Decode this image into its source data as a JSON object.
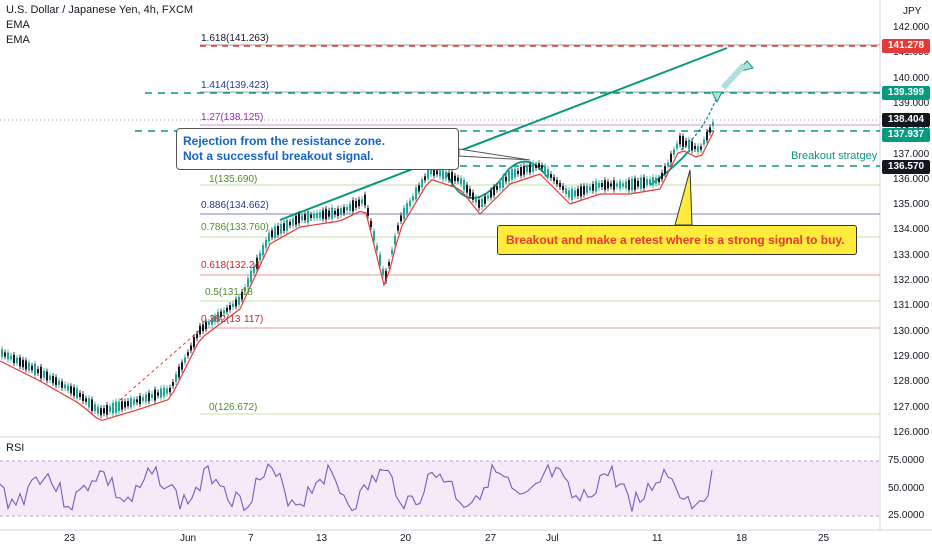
{
  "header": {
    "title": "U.S. Dollar / Japanese Yen, 4h, FXCM",
    "indicator1": "EMA",
    "indicator2": "EMA"
  },
  "currency_label": "JPY",
  "price_axis": [
    "142.000",
    "141.000",
    "140.000",
    "139.000",
    "138.000",
    "137.000",
    "136.000",
    "135.000",
    "134.000",
    "133.000",
    "132.000",
    "131.000",
    "130.000",
    "129.000",
    "128.000",
    "127.000",
    "126.000"
  ],
  "price_tags": {
    "tag1": "141.278",
    "tag2": "139.399",
    "tag3": "138.404",
    "tag4": "137.937",
    "tag5": "136.570"
  },
  "fib_levels": {
    "f1618": "1.618(141.263)",
    "f1414": "1.414(139.423)",
    "f127": "1.27(138.125)",
    "f1": "1(135.690)",
    "f0886": "0.886(134.662)",
    "f0786": "0.786(133.760)",
    "f0618": "0.618(132.24",
    "f05": "0.5(131.18",
    "f0382": "0.382(13",
    "f0382b": "117)",
    "f0": "0(126.672)"
  },
  "annotations": {
    "rejection_line1": "Rejection from the resistance zone.",
    "rejection_line2": "Not a successful breakout signal.",
    "breakout_label": "Breakout stratgey",
    "breakout_note": "Breakout and make a retest where is a strong signal to buy."
  },
  "rsi": {
    "label": "RSI",
    "axis": [
      "75.0000",
      "50.0000",
      "25.0000"
    ]
  },
  "time_axis": [
    "23",
    "Jun",
    "7",
    "13",
    "20",
    "27",
    "Jul",
    "11",
    "18",
    "25"
  ],
  "colors": {
    "up": "#26a69a",
    "down": "#131722",
    "red": "#e53935",
    "teal": "#089981",
    "navy": "#1e3a8a",
    "purple": "#9c27b0"
  }
}
